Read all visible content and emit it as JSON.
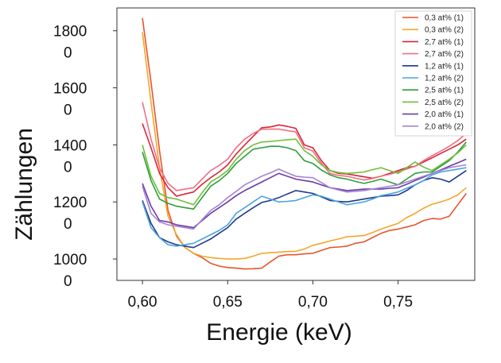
{
  "chart_data": {
    "type": "line",
    "title": "",
    "xlabel": "Energie (keV)",
    "ylabel": "Zählungen",
    "xlim": [
      0.585,
      0.795
    ],
    "ylim": [
      925,
      1880
    ],
    "x_ticks": [
      {
        "value": 0.6,
        "label": "0,60"
      },
      {
        "value": 0.65,
        "label": "0,65"
      },
      {
        "value": 0.7,
        "label": "0,70"
      },
      {
        "value": 0.75,
        "label": "0,75"
      }
    ],
    "y_ticks": [
      {
        "value": 1000,
        "line1": "1000",
        "line2": "0"
      },
      {
        "value": 1200,
        "line1": "1200",
        "line2": "0"
      },
      {
        "value": 1400,
        "line1": "1400",
        "line2": "0"
      },
      {
        "value": 1600,
        "line1": "1600",
        "line2": "0"
      },
      {
        "value": 1800,
        "line1": "1800",
        "line2": "0"
      }
    ],
    "legend_position": "top-right",
    "grid": false,
    "x": [
      0.6,
      0.605,
      0.61,
      0.615,
      0.62,
      0.625,
      0.63,
      0.635,
      0.64,
      0.645,
      0.65,
      0.655,
      0.66,
      0.665,
      0.67,
      0.675,
      0.68,
      0.685,
      0.69,
      0.695,
      0.7,
      0.705,
      0.71,
      0.715,
      0.72,
      0.725,
      0.73,
      0.735,
      0.74,
      0.745,
      0.75,
      0.755,
      0.76,
      0.765,
      0.77,
      0.775,
      0.78,
      0.785,
      0.79
    ],
    "series": [
      {
        "name": "0,3 at% (1)",
        "color": "#e8542b",
        "values": [
          1845,
          1620,
          1380,
          1170,
          1080,
          1040,
          1020,
          1005,
          985,
          975,
          970,
          968,
          965,
          966,
          968,
          990,
          1010,
          1015,
          1015,
          1018,
          1020,
          1030,
          1040,
          1042,
          1045,
          1055,
          1060,
          1075,
          1090,
          1100,
          1105,
          1112,
          1120,
          1135,
          1142,
          1140,
          1150,
          1190,
          1230
        ]
      },
      {
        "name": "0,3 at% (2)",
        "color": "#f5a62a",
        "values": [
          1795,
          1550,
          1320,
          1150,
          1085,
          1040,
          1020,
          1010,
          1005,
          1002,
          1000,
          1000,
          1002,
          1010,
          1020,
          1022,
          1024,
          1026,
          1027,
          1035,
          1048,
          1055,
          1063,
          1070,
          1078,
          1080,
          1082,
          1093,
          1105,
          1115,
          1125,
          1145,
          1160,
          1178,
          1192,
          1200,
          1210,
          1225,
          1250
        ]
      },
      {
        "name": "2,7 at% (1)",
        "color": "#d9263a",
        "values": [
          1475,
          1390,
          1300,
          1250,
          1220,
          1228,
          1235,
          1262,
          1285,
          1305,
          1330,
          1368,
          1400,
          1430,
          1460,
          1463,
          1470,
          1465,
          1458,
          1400,
          1390,
          1345,
          1310,
          1300,
          1298,
          1293,
          1288,
          1283,
          1290,
          1300,
          1310,
          1320,
          1325,
          1340,
          1355,
          1370,
          1385,
          1400,
          1420
        ]
      },
      {
        "name": "2,7 at% (2)",
        "color": "#ef6f83",
        "values": [
          1550,
          1420,
          1320,
          1265,
          1240,
          1245,
          1250,
          1280,
          1310,
          1328,
          1350,
          1390,
          1420,
          1440,
          1455,
          1455,
          1455,
          1450,
          1445,
          1390,
          1378,
          1335,
          1300,
          1293,
          1290,
          1283,
          1277,
          1282,
          1290,
          1297,
          1305,
          1315,
          1325,
          1345,
          1362,
          1378,
          1395,
          1415,
          1440
        ]
      },
      {
        "name": "1,2 at% (1)",
        "color": "#1f3a8c",
        "values": [
          1205,
          1125,
          1075,
          1060,
          1050,
          1045,
          1040,
          1055,
          1070,
          1090,
          1110,
          1140,
          1160,
          1180,
          1198,
          1205,
          1215,
          1228,
          1240,
          1235,
          1230,
          1218,
          1205,
          1202,
          1200,
          1205,
          1210,
          1215,
          1220,
          1222,
          1225,
          1240,
          1260,
          1275,
          1285,
          1280,
          1270,
          1290,
          1310
        ]
      },
      {
        "name": "1,2 at% (2)",
        "color": "#4aa3e0",
        "values": [
          1200,
          1110,
          1075,
          1050,
          1045,
          1050,
          1055,
          1070,
          1085,
          1100,
          1120,
          1160,
          1180,
          1200,
          1220,
          1210,
          1200,
          1202,
          1205,
          1215,
          1225,
          1220,
          1210,
          1200,
          1190,
          1195,
          1200,
          1210,
          1222,
          1228,
          1235,
          1248,
          1260,
          1275,
          1295,
          1305,
          1310,
          1315,
          1320
        ]
      },
      {
        "name": "2,5 at% (1)",
        "color": "#2e9e3a",
        "values": [
          1375,
          1275,
          1210,
          1195,
          1185,
          1180,
          1175,
          1215,
          1255,
          1275,
          1300,
          1335,
          1360,
          1385,
          1390,
          1395,
          1395,
          1390,
          1380,
          1345,
          1335,
          1312,
          1295,
          1285,
          1280,
          1272,
          1265,
          1272,
          1280,
          1270,
          1260,
          1280,
          1300,
          1305,
          1305,
          1325,
          1345,
          1375,
          1410
        ]
      },
      {
        "name": "2,5 at% (2)",
        "color": "#6fbf3a",
        "values": [
          1400,
          1290,
          1230,
          1215,
          1210,
          1200,
          1190,
          1232,
          1270,
          1288,
          1310,
          1350,
          1380,
          1400,
          1410,
          1412,
          1415,
          1418,
          1420,
          1380,
          1360,
          1330,
          1310,
          1303,
          1300,
          1302,
          1305,
          1313,
          1320,
          1310,
          1300,
          1320,
          1340,
          1322,
          1310,
          1330,
          1350,
          1372,
          1400
        ]
      },
      {
        "name": "2,0 at% (1)",
        "color": "#6a3ca6",
        "values": [
          1265,
          1185,
          1135,
          1130,
          1120,
          1115,
          1110,
          1135,
          1160,
          1180,
          1200,
          1222,
          1240,
          1255,
          1270,
          1285,
          1300,
          1290,
          1280,
          1275,
          1270,
          1260,
          1250,
          1245,
          1240,
          1242,
          1245,
          1245,
          1245,
          1248,
          1250,
          1262,
          1275,
          1287,
          1300,
          1312,
          1325,
          1337,
          1350
        ]
      },
      {
        "name": "2,0 at% (2)",
        "color": "#a583d4",
        "values": [
          1255,
          1160,
          1130,
          1120,
          1115,
          1110,
          1105,
          1138,
          1170,
          1190,
          1215,
          1237,
          1260,
          1275,
          1290,
          1302,
          1315,
          1302,
          1290,
          1287,
          1285,
          1268,
          1250,
          1242,
          1235,
          1237,
          1240,
          1245,
          1250,
          1255,
          1260,
          1270,
          1280,
          1290,
          1300,
          1310,
          1320,
          1325,
          1330
        ]
      }
    ]
  }
}
